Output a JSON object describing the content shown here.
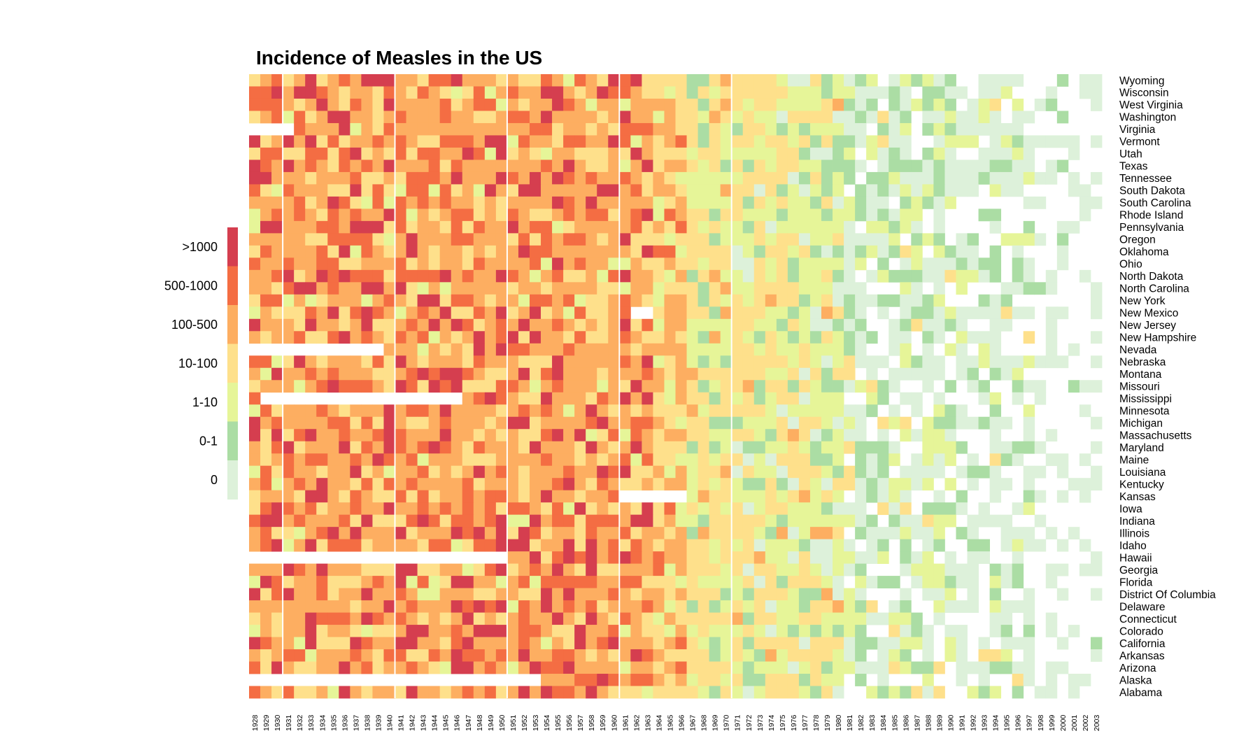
{
  "chart_data": {
    "type": "heatmap",
    "title": "Incidence of Measles in the US",
    "xlabel": "",
    "ylabel": "",
    "grid": false,
    "legend_position": "left",
    "years": [
      1928,
      1929,
      1930,
      1931,
      1932,
      1933,
      1934,
      1935,
      1936,
      1937,
      1938,
      1939,
      1940,
      1941,
      1942,
      1943,
      1944,
      1945,
      1946,
      1947,
      1948,
      1949,
      1950,
      1951,
      1952,
      1953,
      1954,
      1955,
      1956,
      1957,
      1958,
      1959,
      1960,
      1961,
      1962,
      1963,
      1964,
      1965,
      1966,
      1967,
      1968,
      1969,
      1970,
      1971,
      1972,
      1973,
      1974,
      1975,
      1976,
      1977,
      1978,
      1979,
      1980,
      1981,
      1982,
      1983,
      1984,
      1985,
      1986,
      1987,
      1988,
      1989,
      1990,
      1991,
      1992,
      1993,
      1994,
      1995,
      1996,
      1997,
      1998,
      1999,
      2000,
      2001,
      2002,
      2003
    ],
    "states": [
      "Wyoming",
      "Wisconsin",
      "West Virginia",
      "Washington",
      "Virginia",
      "Vermont",
      "Utah",
      "Texas",
      "Tennessee",
      "South Dakota",
      "South Carolina",
      "Rhode Island",
      "Pennsylvania",
      "Oregon",
      "Oklahoma",
      "Ohio",
      "North Dakota",
      "North Carolina",
      "New York",
      "New Mexico",
      "New Jersey",
      "New Hampshire",
      "Nevada",
      "Nebraska",
      "Montana",
      "Missouri",
      "Mississippi",
      "Minnesota",
      "Michigan",
      "Massachusetts",
      "Maryland",
      "Maine",
      "Louisiana",
      "Kentucky",
      "Kansas",
      "Iowa",
      "Indiana",
      "Illinois",
      "Idaho",
      "Hawaii",
      "Georgia",
      "Florida",
      "District Of Columbia",
      "Delaware",
      "Connecticut",
      "Colorado",
      "California",
      "Arkansas",
      "Arizona",
      "Alaska",
      "Alabama"
    ],
    "vaccine_marker_years": [
      1931,
      1941,
      1951,
      1961,
      1971
    ],
    "legend": [
      {
        "label": ">1000",
        "color": "#d53e4f"
      },
      {
        "label": "500-1000",
        "color": "#f46d43"
      },
      {
        "label": "100-500",
        "color": "#fdae61"
      },
      {
        "label": "10-100",
        "color": "#fee08b"
      },
      {
        "label": "1-10",
        "color": "#e6f598"
      },
      {
        "label": "0-1",
        "color": "#abdda4"
      },
      {
        "label": "0",
        "color": "#ddf1da"
      }
    ],
    "category_codes": "0=0, 1=0-1, 2=1-10, 3=10-100, 4=100-500, 5=500-1000, 6=>1000, -1=no data",
    "missing_ranges": [
      {
        "state": "Virginia",
        "from": 1928,
        "to": 1931
      },
      {
        "state": "Nevada",
        "from": 1928,
        "to": 1939
      },
      {
        "state": "Mississippi",
        "from": 1929,
        "to": 1946
      },
      {
        "state": "Kansas",
        "from": 1961,
        "to": 1966
      },
      {
        "state": "Hawaii",
        "from": 1928,
        "to": 1950
      },
      {
        "state": "Alaska",
        "from": 1928,
        "to": 1953
      },
      {
        "state": "New Mexico",
        "from": 1962,
        "to": 1963
      }
    ]
  }
}
